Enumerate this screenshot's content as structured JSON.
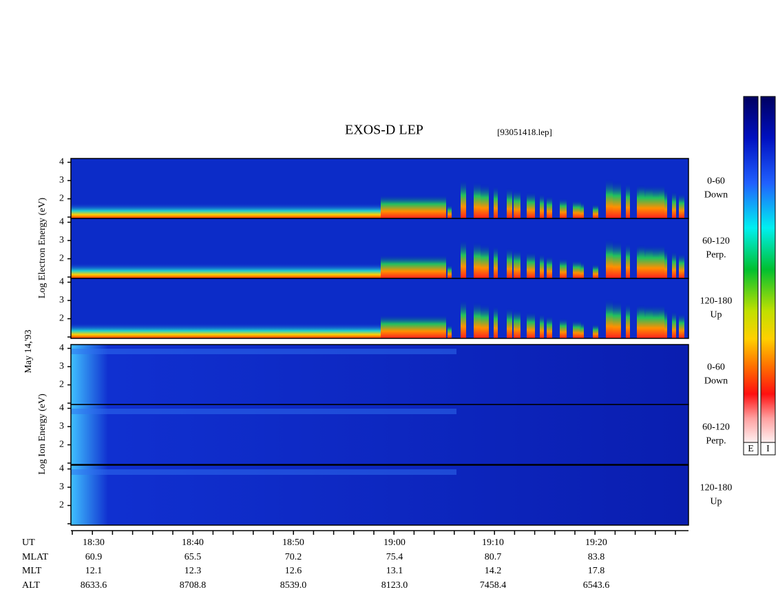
{
  "header": {
    "title": "EXOS-D LEP",
    "file": "[93051418.lep]"
  },
  "side_labels": {
    "date": "May 14,'93",
    "electron": "Log  Electron  Energy  (eV)",
    "ion": "Log  Ion  Energy  (eV)"
  },
  "panels": [
    {
      "species": "electron",
      "angle": "0-60",
      "direction": "Down",
      "ticks": [
        4,
        3,
        2
      ]
    },
    {
      "species": "electron",
      "angle": "60-120",
      "direction": "Perp.",
      "ticks": [
        4,
        3,
        2
      ]
    },
    {
      "species": "electron",
      "angle": "120-180",
      "direction": "Up",
      "ticks": [
        4,
        3,
        2
      ]
    },
    {
      "species": "ion",
      "angle": "0-60",
      "direction": "Down",
      "ticks": [
        4,
        3,
        2
      ]
    },
    {
      "species": "ion",
      "angle": "60-120",
      "direction": "Perp.",
      "ticks": [
        4,
        3,
        2
      ]
    },
    {
      "species": "ion",
      "angle": "120-180",
      "direction": "Up",
      "ticks": [
        4,
        3,
        2
      ]
    }
  ],
  "orbit_table": {
    "rows": [
      {
        "name": "UT",
        "values": [
          "18:30",
          "18:40",
          "18:50",
          "19:00",
          "19:10",
          "19:20"
        ]
      },
      {
        "name": "MLAT",
        "values": [
          "60.9",
          "65.5",
          "70.2",
          "75.4",
          "80.7",
          "83.8"
        ]
      },
      {
        "name": "MLT",
        "values": [
          "12.1",
          "12.3",
          "12.6",
          "13.1",
          "14.2",
          "17.8"
        ]
      },
      {
        "name": "ALT",
        "values": [
          "8633.6",
          "8708.8",
          "8539.0",
          "8123.0",
          "7458.4",
          "6543.6"
        ]
      }
    ]
  },
  "colorbars": [
    {
      "label": "E"
    },
    {
      "label": "I"
    }
  ]
}
